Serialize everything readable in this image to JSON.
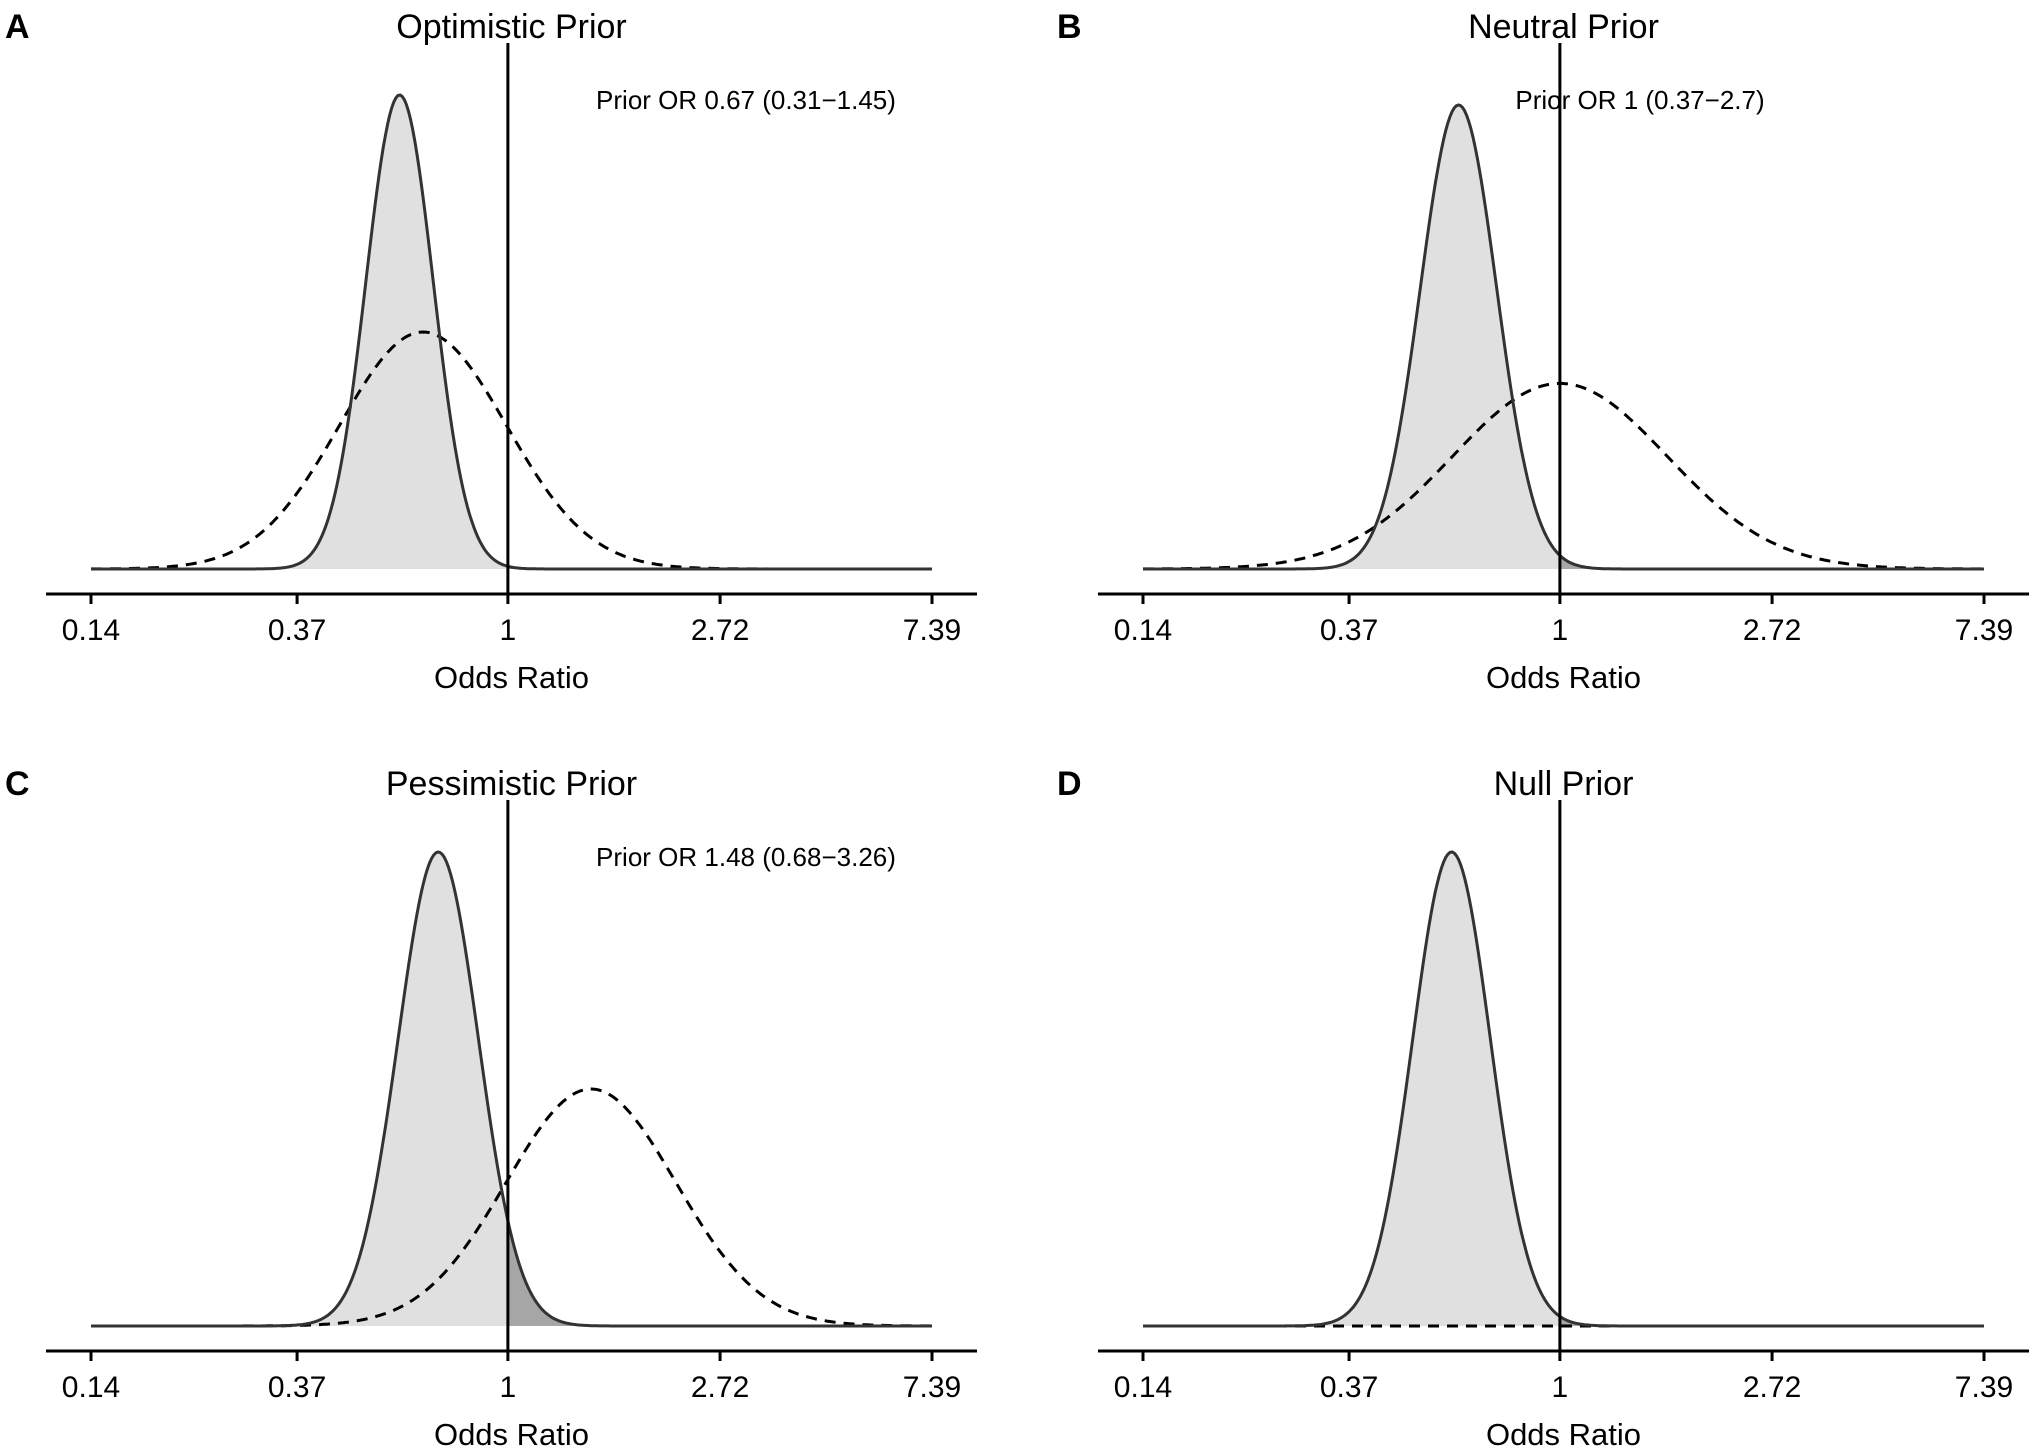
{
  "x_axis_scale": "log",
  "chart_data": [
    {
      "type": "area",
      "panel_label": "A",
      "title": "Optimistic Prior",
      "annotation": "Prior OR 0.67 (0.31−1.45)",
      "xlabel": "Odds Ratio",
      "xlim": [
        0.14,
        7.39
      ],
      "xscale": "log",
      "x_ticks": [
        0.14,
        0.37,
        1,
        2.72,
        7.39
      ],
      "x_tick_labels": [
        "0.14",
        "0.37",
        "1",
        "2.72",
        "7.39"
      ],
      "reference_line_x": 1,
      "posterior": {
        "median_or": 0.6,
        "ci_low": 0.44,
        "ci_high": 0.82,
        "relative_peak": 1.0
      },
      "prior": {
        "median_or": 0.67,
        "ci_low": 0.31,
        "ci_high": 1.45,
        "relative_peak": 0.5
      },
      "posterior_fill": "#e0e0e0",
      "tail_fill": "#a6a6a6",
      "prior_line_style": "dashed"
    },
    {
      "type": "area",
      "panel_label": "B",
      "title": "Neutral Prior",
      "annotation": "Prior OR 1 (0.37−2.7)",
      "xlabel": "Odds Ratio",
      "xlim": [
        0.14,
        7.39
      ],
      "xscale": "log",
      "x_ticks": [
        0.14,
        0.37,
        1,
        2.72,
        7.39
      ],
      "x_tick_labels": [
        "0.14",
        "0.37",
        "1",
        "2.72",
        "7.39"
      ],
      "reference_line_x": 1,
      "posterior": {
        "median_or": 0.62,
        "ci_low": 0.43,
        "ci_high": 0.87,
        "relative_peak": 1.0
      },
      "prior": {
        "median_or": 1,
        "ci_low": 0.37,
        "ci_high": 2.7,
        "relative_peak": 0.4
      },
      "posterior_fill": "#e0e0e0",
      "tail_fill": "#a6a6a6",
      "prior_line_style": "dashed"
    },
    {
      "type": "area",
      "panel_label": "C",
      "title": "Pessimistic Prior",
      "annotation": "Prior OR 1.48 (0.68−3.26)",
      "xlabel": "Odds Ratio",
      "xlim": [
        0.14,
        7.39
      ],
      "xscale": "log",
      "x_ticks": [
        0.14,
        0.37,
        1,
        2.72,
        7.39
      ],
      "x_tick_labels": [
        "0.14",
        "0.37",
        "1",
        "2.72",
        "7.39"
      ],
      "reference_line_x": 1,
      "posterior": {
        "median_or": 0.72,
        "ci_low": 0.5,
        "ci_high": 1.05,
        "relative_peak": 1.0
      },
      "prior": {
        "median_or": 1.48,
        "ci_low": 0.68,
        "ci_high": 3.26,
        "relative_peak": 0.5
      },
      "posterior_fill": "#e0e0e0",
      "tail_fill": "#a6a6a6",
      "prior_line_style": "dashed"
    },
    {
      "type": "area",
      "panel_label": "D",
      "title": "Null Prior",
      "annotation": "",
      "xlabel": "Odds Ratio",
      "xlim": [
        0.14,
        7.39
      ],
      "xscale": "log",
      "x_ticks": [
        0.14,
        0.37,
        1,
        2.72,
        7.39
      ],
      "x_tick_labels": [
        "0.14",
        "0.37",
        "1",
        "2.72",
        "7.39"
      ],
      "reference_line_x": 1,
      "posterior": {
        "median_or": 0.6,
        "ci_low": 0.42,
        "ci_high": 0.86,
        "relative_peak": 1.0
      },
      "prior": {
        "flat": true,
        "relative_peak": 0.0
      },
      "posterior_fill": "#e0e0e0",
      "tail_fill": "#a6a6a6",
      "prior_line_style": "dashed"
    }
  ]
}
